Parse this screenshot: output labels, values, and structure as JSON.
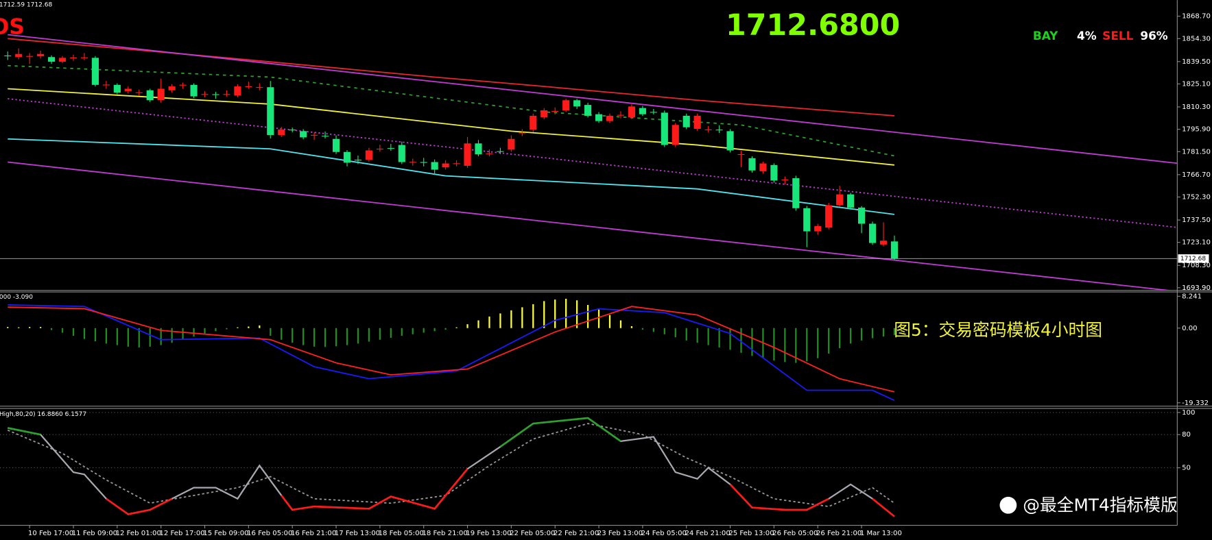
{
  "chart_data": [
    {
      "type": "candlestick",
      "title": "1712.6800",
      "info": "1712.59 1712.68",
      "logo": "OS",
      "signal": [
        "BAY",
        "4%",
        "SELL",
        "96%"
      ],
      "categories": [
        null,
        null,
        "10 Feb 17:00",
        null,
        null,
        null,
        "11 Feb 09:00",
        null,
        null,
        null,
        "12 Feb 01:00",
        null,
        null,
        null,
        "12 Feb 17:00",
        null,
        null,
        null,
        "15 Feb 09:00",
        null,
        null,
        null,
        "16 Feb 05:00",
        null,
        null,
        null,
        "16 Feb 21:00",
        null,
        null,
        null,
        "17 Feb 13:00",
        null,
        null,
        null,
        "18 Feb 05:00",
        null,
        null,
        null,
        "18 Feb 21:00",
        null,
        null,
        null,
        "19 Feb 13:00",
        null,
        null,
        null,
        "22 Feb 05:00",
        null,
        null,
        null,
        "22 Feb 21:00",
        null,
        null,
        null,
        "23 Feb 13:00",
        null,
        null,
        null,
        "24 Feb 05:00",
        null,
        null,
        null,
        "24 Feb 21:00",
        null,
        null,
        null,
        "25 Feb 13:00",
        null,
        null,
        null,
        "26 Feb 05:00",
        null,
        null,
        null,
        "26 Feb 21:00",
        null,
        null,
        null,
        "1 Mar 13:00",
        null,
        null,
        null
      ],
      "open": [
        1843.4,
        1842.4,
        1842.9,
        1842.9,
        1842.4,
        1839.4,
        1841.9,
        1841.9,
        1841.9,
        1824.5,
        1824.5,
        1820.5,
        1819.5,
        1821.0,
        1814.6,
        1821.0,
        1824.5,
        1824.5,
        1818.5,
        1818.5,
        1818.5,
        1817.6,
        1823.5,
        1823.0,
        1823.0,
        1792.2,
        1795.7,
        1794.7,
        1792.2,
        1791.7,
        1789.7,
        1781.3,
        1776.3,
        1776.3,
        1783.3,
        1783.8,
        1785.8,
        1774.8,
        1774.8,
        1774.8,
        1771.4,
        1773.9,
        1772.4,
        1786.8,
        1780.3,
        1781.8,
        1782.8,
        1793.7,
        1795.7,
        1803.7,
        1807.6,
        1808.1,
        1814.6,
        1811.6,
        1805.6,
        1801.2,
        1805.1,
        1803.7,
        1809.6,
        1807.1,
        1806.6,
        1785.8,
        1804.6,
        1796.2,
        1795.7,
        1795.7,
        1794.7,
        1779.8,
        1777.3,
        1768.9,
        1772.9,
        1763.4,
        1764.4,
        1745.1,
        1730.2,
        1732.6,
        1747.0,
        1754.0,
        1745.5,
        1735.1,
        1721.7,
        1723.7
      ],
      "high": [
        1846.0,
        1848.0,
        1845.0,
        1846.5,
        1843.5,
        1843.0,
        1844.0,
        1845.0,
        1843.0,
        1827.0,
        1825.5,
        1823.5,
        1821.5,
        1822.0,
        1828.5,
        1825.0,
        1826.0,
        1825.5,
        1820.5,
        1820.0,
        1821.0,
        1825.0,
        1826.5,
        1825.5,
        1827.0,
        1797.5,
        1797.0,
        1796.0,
        1794.0,
        1794.5,
        1792.0,
        1782.5,
        1779.0,
        1784.0,
        1786.0,
        1786.5,
        1788.0,
        1777.0,
        1777.5,
        1776.5,
        1776.0,
        1776.0,
        1791.0,
        1789.0,
        1783.0,
        1784.0,
        1792.0,
        1796.0,
        1806.0,
        1809.5,
        1810.0,
        1815.5,
        1815.5,
        1813.0,
        1807.0,
        1806.0,
        1807.5,
        1812.0,
        1811.0,
        1809.0,
        1808.0,
        1800.0,
        1806.0,
        1806.0,
        1798.0,
        1798.5,
        1796.0,
        1782.0,
        1778.5,
        1775.0,
        1774.0,
        1765.5,
        1766.0,
        1746.5,
        1735.0,
        1748.5,
        1759.5,
        1755.0,
        1746.5,
        1736.5,
        1736.0,
        1727.5
      ],
      "low": [
        1840.5,
        1841.0,
        1838.0,
        1841.5,
        1838.0,
        1838.5,
        1840.0,
        1840.5,
        1823.5,
        1822.0,
        1818.5,
        1819.0,
        1817.5,
        1813.5,
        1813.0,
        1819.5,
        1822.0,
        1816.0,
        1816.5,
        1815.5,
        1817.0,
        1816.5,
        1822.0,
        1821.0,
        1790.0,
        1791.0,
        1794.0,
        1789.5,
        1789.0,
        1790.0,
        1780.0,
        1772.0,
        1773.5,
        1775.0,
        1781.5,
        1782.0,
        1773.5,
        1772.5,
        1772.0,
        1766.5,
        1770.0,
        1772.0,
        1771.0,
        1778.5,
        1778.5,
        1780.0,
        1781.5,
        1791.5,
        1794.0,
        1802.5,
        1805.5,
        1807.0,
        1809.0,
        1803.5,
        1800.0,
        1800.0,
        1803.0,
        1802.5,
        1804.5,
        1805.5,
        1784.5,
        1784.5,
        1796.0,
        1795.0,
        1794.0,
        1793.5,
        1781.0,
        1771.5,
        1768.0,
        1767.5,
        1761.5,
        1760.5,
        1743.5,
        1720.0,
        1728.0,
        1731.5,
        1746.0,
        1744.0,
        1729.0,
        1721.5,
        1720.5,
        1712.0
      ],
      "close": [
        1842.9,
        1844.4,
        1843.1,
        1844.4,
        1839.4,
        1841.9,
        1842.1,
        1842.2,
        1824.5,
        1824.7,
        1819.5,
        1822.0,
        1819.7,
        1814.6,
        1822.0,
        1823.5,
        1824.6,
        1817.1,
        1818.6,
        1818.4,
        1818.6,
        1823.5,
        1823.6,
        1823.1,
        1792.2,
        1795.7,
        1795.6,
        1790.7,
        1792.3,
        1791.6,
        1781.3,
        1774.4,
        1776.2,
        1782.3,
        1783.4,
        1783.7,
        1774.8,
        1774.9,
        1774.7,
        1769.9,
        1773.9,
        1774.0,
        1786.8,
        1779.8,
        1780.4,
        1781.7,
        1789.7,
        1793.8,
        1804.6,
        1808.1,
        1807.7,
        1814.6,
        1810.6,
        1804.6,
        1801.2,
        1804.6,
        1805.2,
        1810.6,
        1805.6,
        1807.0,
        1785.8,
        1798.7,
        1797.2,
        1804.6,
        1795.8,
        1795.6,
        1782.3,
        1779.9,
        1769.4,
        1773.9,
        1762.9,
        1763.5,
        1745.1,
        1730.2,
        1733.6,
        1747.0,
        1754.0,
        1745.5,
        1735.1,
        1722.7,
        1724.2,
        1712.68
      ],
      "up_color": "#ff1a1a",
      "down_color": "#19e67a",
      "ylim": [
        1692.4,
        1879.1
      ],
      "yticks": [
        {
          "value": 1868.7,
          "label": "1868.70"
        },
        {
          "value": 1854.3,
          "label": "1854.30"
        },
        {
          "value": 1839.5,
          "label": "1839.50"
        },
        {
          "value": 1825.1,
          "label": "1825.10"
        },
        {
          "value": 1810.3,
          "label": "1810.30"
        },
        {
          "value": 1795.9,
          "label": "1795.90"
        },
        {
          "value": 1781.5,
          "label": "1781.50"
        },
        {
          "value": 1766.7,
          "label": "1766.70"
        },
        {
          "value": 1752.3,
          "label": "1752.30"
        },
        {
          "value": 1737.5,
          "label": "1737.50"
        },
        {
          "value": 1723.1,
          "label": "1723.10"
        },
        {
          "value": 1708.3,
          "label": "1708.30"
        },
        {
          "value": 1693.9,
          "label": "1693.90"
        }
      ],
      "overlays": [
        {
          "color": "#e8262e",
          "x": [
            0,
            20,
            39,
            49,
            63,
            81
          ],
          "values": [
            1854.3,
            1841.9,
            1829.5,
            1823.5,
            1814.6,
            1804.6
          ]
        },
        {
          "color": "#f2f23a",
          "x": [
            0,
            24,
            46,
            63,
            81
          ],
          "values": [
            1822.0,
            1812.1,
            1794.7,
            1785.8,
            1772.9
          ]
        },
        {
          "color": "#4fe6f0",
          "x": [
            0,
            24,
            40,
            63,
            81
          ],
          "values": [
            1789.7,
            1783.3,
            1765.9,
            1757.5,
            1741.1
          ]
        },
        {
          "color": "#2e9e2e",
          "dash": "4 5",
          "x": [
            0,
            24,
            49,
            67,
            81
          ],
          "values": [
            1836.9,
            1829.5,
            1807.1,
            1798.7,
            1778.8
          ]
        },
        {
          "color": "#c23bd6",
          "x": [
            0,
            107
          ],
          "values": [
            1856.8,
            1773.9
          ]
        },
        {
          "color": "#c23bd6",
          "dash": "2 3",
          "x": [
            0,
            107
          ],
          "values": [
            1815.6,
            1732.6
          ]
        },
        {
          "color": "#c23bd6",
          "x": [
            0,
            107
          ],
          "values": [
            1774.8,
            1691.4
          ]
        }
      ]
    },
    {
      "type": "macd",
      "label": "000 -3.090",
      "caption": "图5：交易密码模板4小时图",
      "values": [
        0.3,
        0.2,
        0.1,
        0.1,
        -0.5,
        -1.2,
        -2.0,
        -2.8,
        -3.4,
        -4.0,
        -4.4,
        -4.8,
        -5.0,
        -4.8,
        -4.4,
        -3.8,
        -3.0,
        -2.2,
        -1.4,
        -0.8,
        -0.3,
        0.2,
        0.4,
        0.7,
        -2.0,
        -3.0,
        -3.8,
        -4.4,
        -4.8,
        -4.9,
        -4.7,
        -4.4,
        -4.0,
        -3.5,
        -3.0,
        -2.5,
        -2.0,
        -1.6,
        -1.2,
        -0.8,
        -0.4,
        0.2,
        1.0,
        2.0,
        3.0,
        3.8,
        4.6,
        5.4,
        6.2,
        7.0,
        7.4,
        7.6,
        7.2,
        6.0,
        4.8,
        3.4,
        2.0,
        0.5,
        -0.4,
        -1.0,
        -1.6,
        -2.4,
        -3.2,
        -3.8,
        -4.4,
        -5.0,
        -5.6,
        -6.4,
        -7.2,
        -7.8,
        -8.4,
        -8.8,
        -9.0,
        -8.6,
        -7.8,
        -6.6,
        -5.2,
        -4.0,
        -3.2,
        -2.6,
        -2.2,
        -1.8
      ],
      "up_color": "#ffff33",
      "down_color": "#1f8f1f",
      "ylim": [
        -20.1,
        9.45
      ],
      "yticks": [
        8.241,
        {
          "value": 0,
          "label": "0.00"
        },
        -19.332
      ],
      "lines": [
        {
          "color": "#1a1aff",
          "x": [
            0,
            7,
            14,
            23,
            28,
            33,
            41,
            50,
            54,
            60,
            66,
            73,
            79,
            81
          ],
          "values": [
            6.0,
            5.6,
            -3.0,
            -2.6,
            -10.0,
            -13.1,
            -11.1,
            2.0,
            5.0,
            4.0,
            -1.4,
            -16.1,
            -16.1,
            -18.7
          ]
        },
        {
          "color": "#ff2020",
          "x": [
            0,
            7,
            14,
            24,
            30,
            35,
            42,
            50,
            57,
            63,
            70,
            76,
            81
          ],
          "values": [
            5.43,
            5.03,
            -0.6,
            -3.0,
            -9.0,
            -12.1,
            -10.6,
            -1.0,
            5.6,
            3.4,
            -5.0,
            -13.1,
            -16.5
          ]
        }
      ]
    },
    {
      "type": "stochastic",
      "label": "High,80,20) 16.8860 6.1577",
      "watermark": "@最全MT4指标模版",
      "overbought": 80,
      "oversold": 20,
      "high_color": "#2ea02e",
      "low_color": "#ff1a1a",
      "ylim": [
        -2,
        104
      ],
      "yticks": [
        100,
        80,
        50
      ],
      "main": {
        "color": "#a8a8b0",
        "x": [
          0,
          3,
          6,
          7,
          9,
          11,
          13,
          15,
          17,
          19,
          21,
          23,
          25,
          26,
          28,
          33,
          35,
          39,
          42,
          45,
          48,
          53,
          56,
          59,
          61,
          63,
          64,
          66,
          68,
          71,
          73,
          75,
          77,
          79,
          81
        ],
        "values": [
          86,
          80,
          46,
          44,
          22,
          8,
          12,
          22,
          32,
          32,
          22,
          52,
          25,
          12,
          15,
          13,
          24,
          13,
          49,
          69,
          90,
          95,
          74,
          78,
          46,
          40,
          50,
          35,
          14,
          12,
          12,
          22,
          35,
          22,
          6
        ]
      },
      "signal": {
        "color": "#9a9a9a",
        "dash": "3 3",
        "x": [
          0,
          5,
          9,
          13,
          17,
          21,
          24,
          28,
          35,
          40,
          44,
          48,
          53,
          58,
          62,
          66,
          70,
          75,
          79,
          81
        ],
        "values": [
          84,
          63,
          39,
          18,
          25,
          32,
          42,
          22,
          18,
          25,
          52,
          76,
          90,
          80,
          59,
          42,
          22,
          15,
          32,
          18
        ]
      }
    }
  ]
}
